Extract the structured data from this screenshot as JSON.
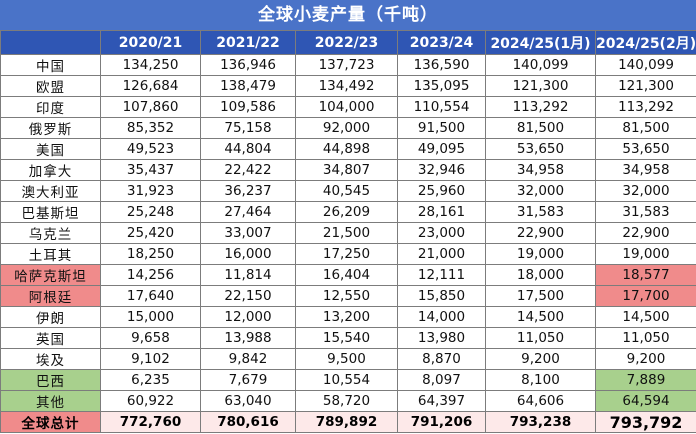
{
  "title": "全球小麦产量（千吨）",
  "columns": [
    "",
    "2020/21",
    "2021/22",
    "2022/23",
    "2023/24",
    "2024/25(1月)",
    "2024/25(2月)"
  ],
  "rows": [
    {
      "name": "中国",
      "values": [
        "134,250",
        "136,946",
        "137,723",
        "136,590",
        "140,099",
        "140,099"
      ],
      "name_hl": "",
      "last_hl": ""
    },
    {
      "name": "欧盟",
      "values": [
        "126,684",
        "138,479",
        "134,492",
        "135,095",
        "121,300",
        "121,300"
      ],
      "name_hl": "",
      "last_hl": ""
    },
    {
      "name": "印度",
      "values": [
        "107,860",
        "109,586",
        "104,000",
        "110,554",
        "113,292",
        "113,292"
      ],
      "name_hl": "",
      "last_hl": ""
    },
    {
      "name": "俄罗斯",
      "values": [
        "85,352",
        "75,158",
        "92,000",
        "91,500",
        "81,500",
        "81,500"
      ],
      "name_hl": "",
      "last_hl": ""
    },
    {
      "name": "美国",
      "values": [
        "49,523",
        "44,804",
        "44,898",
        "49,095",
        "53,650",
        "53,650"
      ],
      "name_hl": "",
      "last_hl": ""
    },
    {
      "name": "加拿大",
      "values": [
        "35,437",
        "22,422",
        "34,807",
        "32,946",
        "34,958",
        "34,958"
      ],
      "name_hl": "",
      "last_hl": ""
    },
    {
      "name": "澳大利亚",
      "values": [
        "31,923",
        "36,237",
        "40,545",
        "25,960",
        "32,000",
        "32,000"
      ],
      "name_hl": "",
      "last_hl": ""
    },
    {
      "name": "巴基斯坦",
      "values": [
        "25,248",
        "27,464",
        "26,209",
        "28,161",
        "31,583",
        "31,583"
      ],
      "name_hl": "",
      "last_hl": ""
    },
    {
      "name": "乌克兰",
      "values": [
        "25,420",
        "33,007",
        "21,500",
        "23,000",
        "22,900",
        "22,900"
      ],
      "name_hl": "",
      "last_hl": ""
    },
    {
      "name": "土耳其",
      "values": [
        "18,250",
        "16,000",
        "17,250",
        "21,000",
        "19,000",
        "19,000"
      ],
      "name_hl": "",
      "last_hl": ""
    },
    {
      "name": "哈萨克斯坦",
      "values": [
        "14,256",
        "11,814",
        "16,404",
        "12,111",
        "18,000",
        "18,577"
      ],
      "name_hl": "red",
      "last_hl": "red"
    },
    {
      "name": "阿根廷",
      "values": [
        "17,640",
        "22,150",
        "12,550",
        "15,850",
        "17,500",
        "17,700"
      ],
      "name_hl": "red",
      "last_hl": "red"
    },
    {
      "name": "伊朗",
      "values": [
        "15,000",
        "12,000",
        "13,200",
        "14,000",
        "14,500",
        "14,500"
      ],
      "name_hl": "",
      "last_hl": ""
    },
    {
      "name": "英国",
      "values": [
        "9,658",
        "13,988",
        "15,540",
        "13,980",
        "11,050",
        "11,050"
      ],
      "name_hl": "",
      "last_hl": ""
    },
    {
      "name": "埃及",
      "values": [
        "9,102",
        "9,842",
        "9,500",
        "8,870",
        "9,200",
        "9,200"
      ],
      "name_hl": "",
      "last_hl": ""
    },
    {
      "name": "巴西",
      "values": [
        "6,235",
        "7,679",
        "10,554",
        "8,097",
        "8,100",
        "7,889"
      ],
      "name_hl": "green",
      "last_hl": "green"
    },
    {
      "name": "其他",
      "values": [
        "60,922",
        "63,040",
        "58,720",
        "64,397",
        "64,606",
        "64,594"
      ],
      "name_hl": "green",
      "last_hl": "green"
    }
  ],
  "total": {
    "name": "全球总计",
    "values": [
      "772,760",
      "780,616",
      "789,892",
      "791,206",
      "793,238",
      "793,792"
    ]
  }
}
